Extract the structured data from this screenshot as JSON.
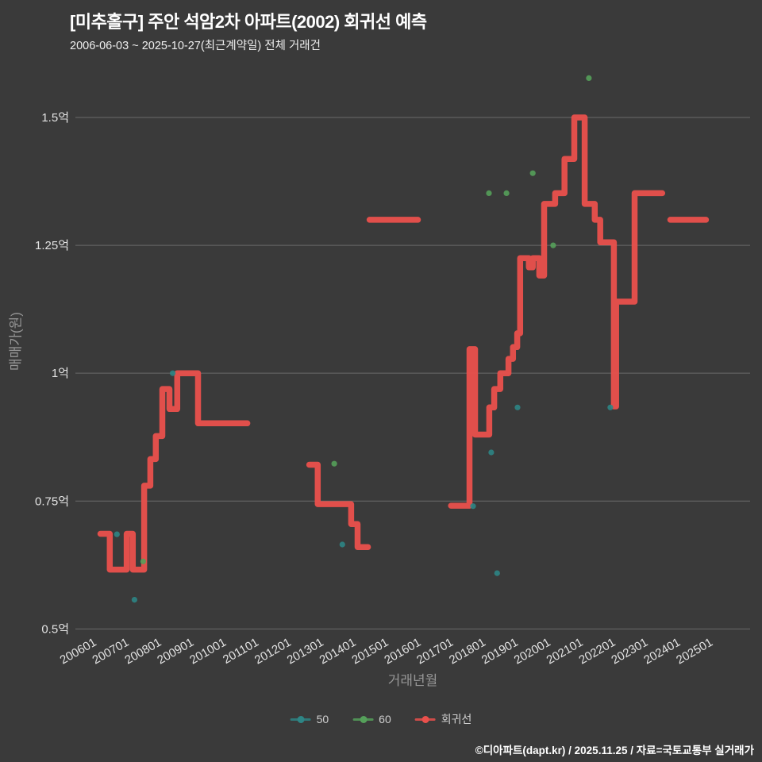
{
  "header": {
    "title": "[미추홀구] 주안 석암2차 아파트(2002) 회귀선 예측",
    "subtitle": "2006-06-03 ~ 2025-10-27(최근계약일) 전체 거래건"
  },
  "footer": {
    "credit": "©디아파트(dapt.kr) / 2025.11.25 / 자료=국토교통부 실거래가"
  },
  "colors": {
    "background": "#3a3a3a",
    "grid": "#8a8a8a",
    "tick_label": "#e3e3e3",
    "axis_title": "#969696",
    "title": "#ffffff",
    "subtitle": "#f0f0f0",
    "footer": "#ffffff",
    "series_50": "#2e8585",
    "series_60": "#55a05a",
    "regression": "#ea504c"
  },
  "legend": {
    "items": [
      {
        "label": "50",
        "color": "#2e8585"
      },
      {
        "label": "60",
        "color": "#55a05a"
      },
      {
        "label": "회귀선",
        "color": "#ea504c"
      }
    ]
  },
  "chart_data": {
    "type": "line",
    "title": "[미추홀구] 주안 석암2차 아파트(2002) 회귀선 예측",
    "subtitle": "2006-06-03 ~ 2025-10-27(최근계약일) 전체 거래건",
    "xlabel": "거래년월",
    "ylabel": "매매가(원)",
    "grid": true,
    "legend_position": "bottom",
    "x_range": [
      2005.4,
      2026.2
    ],
    "y_range": [
      0.44,
      1.59
    ],
    "x_ticks": [
      "200601",
      "200701",
      "200801",
      "200901",
      "201001",
      "201101",
      "201201",
      "201301",
      "201401",
      "201501",
      "201601",
      "201701",
      "201801",
      "201901",
      "202001",
      "202101",
      "202201",
      "202301",
      "202401",
      "202501"
    ],
    "y_ticks": [
      {
        "value": 0.5,
        "label": "0.5억"
      },
      {
        "value": 0.75,
        "label": "0.75억"
      },
      {
        "value": 1.0,
        "label": "1억"
      },
      {
        "value": 1.25,
        "label": "1.25억"
      },
      {
        "value": 1.5,
        "label": "1.5억"
      }
    ],
    "regression": {
      "name": "회귀선",
      "color": "#ea504c",
      "line_width": 7.5,
      "segments": [
        [
          [
            2006.17,
            0.686
          ],
          [
            2006.46,
            0.686
          ],
          [
            2006.46,
            0.616
          ],
          [
            2006.98,
            0.616
          ],
          [
            2006.98,
            0.686
          ],
          [
            2007.17,
            0.686
          ],
          [
            2007.17,
            0.616
          ],
          [
            2007.52,
            0.616
          ],
          [
            2007.52,
            0.78
          ],
          [
            2007.71,
            0.78
          ],
          [
            2007.71,
            0.832
          ],
          [
            2007.88,
            0.832
          ],
          [
            2007.88,
            0.877
          ],
          [
            2008.08,
            0.877
          ],
          [
            2008.08,
            0.969
          ],
          [
            2008.3,
            0.969
          ],
          [
            2008.3,
            0.93
          ],
          [
            2008.54,
            0.93
          ],
          [
            2008.54,
            1.0
          ],
          [
            2009.18,
            1.0
          ],
          [
            2009.18,
            0.902
          ],
          [
            2010.7,
            0.902
          ]
        ],
        [
          [
            2012.61,
            0.821
          ],
          [
            2012.87,
            0.821
          ],
          [
            2012.87,
            0.744
          ],
          [
            2013.9,
            0.744
          ],
          [
            2013.9,
            0.705
          ],
          [
            2014.1,
            0.705
          ],
          [
            2014.1,
            0.66
          ],
          [
            2014.42,
            0.66
          ]
        ],
        [
          [
            2014.47,
            1.3
          ],
          [
            2015.96,
            1.3
          ]
        ],
        [
          [
            2016.98,
            0.741
          ],
          [
            2017.55,
            0.741
          ],
          [
            2017.55,
            1.047
          ],
          [
            2017.72,
            1.047
          ],
          [
            2017.72,
            0.88
          ],
          [
            2018.16,
            0.88
          ],
          [
            2018.16,
            0.933
          ],
          [
            2018.31,
            0.933
          ],
          [
            2018.31,
            0.969
          ],
          [
            2018.5,
            0.969
          ],
          [
            2018.5,
            1.0
          ],
          [
            2018.75,
            1.0
          ],
          [
            2018.75,
            1.028
          ],
          [
            2018.89,
            1.028
          ],
          [
            2018.89,
            1.051
          ],
          [
            2019.02,
            1.051
          ],
          [
            2019.02,
            1.078
          ],
          [
            2019.11,
            1.078
          ],
          [
            2019.11,
            1.225
          ],
          [
            2019.38,
            1.225
          ],
          [
            2019.38,
            1.207
          ],
          [
            2019.5,
            1.207
          ],
          [
            2019.5,
            1.225
          ],
          [
            2019.7,
            1.225
          ],
          [
            2019.7,
            1.191
          ],
          [
            2019.85,
            1.191
          ],
          [
            2019.85,
            1.331
          ],
          [
            2020.19,
            1.331
          ],
          [
            2020.19,
            1.352
          ],
          [
            2020.48,
            1.352
          ],
          [
            2020.48,
            1.419
          ],
          [
            2020.78,
            1.419
          ],
          [
            2020.78,
            1.5
          ],
          [
            2021.1,
            1.5
          ],
          [
            2021.1,
            1.331
          ],
          [
            2021.41,
            1.331
          ],
          [
            2021.41,
            1.3
          ],
          [
            2021.58,
            1.3
          ],
          [
            2021.58,
            1.256
          ],
          [
            2022.0,
            1.256
          ],
          [
            2022.0,
            0.935
          ],
          [
            2022.07,
            0.935
          ],
          [
            2022.07,
            1.14
          ],
          [
            2022.64,
            1.14
          ],
          [
            2022.64,
            1.352
          ],
          [
            2023.49,
            1.352
          ]
        ],
        [
          [
            2023.74,
            1.3
          ],
          [
            2024.84,
            1.3
          ]
        ]
      ]
    },
    "scatter_series": [
      {
        "name": "50",
        "color": "#2e8585",
        "points": [
          [
            2006.68,
            0.685
          ],
          [
            2007.22,
            0.557
          ],
          [
            2008.4,
            1.0
          ],
          [
            2013.63,
            0.665
          ],
          [
            2017.66,
            0.74
          ],
          [
            2018.22,
            0.845
          ],
          [
            2018.4,
            0.609
          ],
          [
            2019.03,
            0.933
          ],
          [
            2021.89,
            0.933
          ]
        ]
      },
      {
        "name": "60",
        "color": "#55a05a",
        "points": [
          [
            2007.49,
            0.632
          ],
          [
            2013.38,
            0.823
          ],
          [
            2018.15,
            1.352
          ],
          [
            2018.69,
            1.352
          ],
          [
            2019.5,
            1.391
          ],
          [
            2020.13,
            1.25
          ],
          [
            2021.23,
            1.577
          ]
        ]
      }
    ]
  }
}
